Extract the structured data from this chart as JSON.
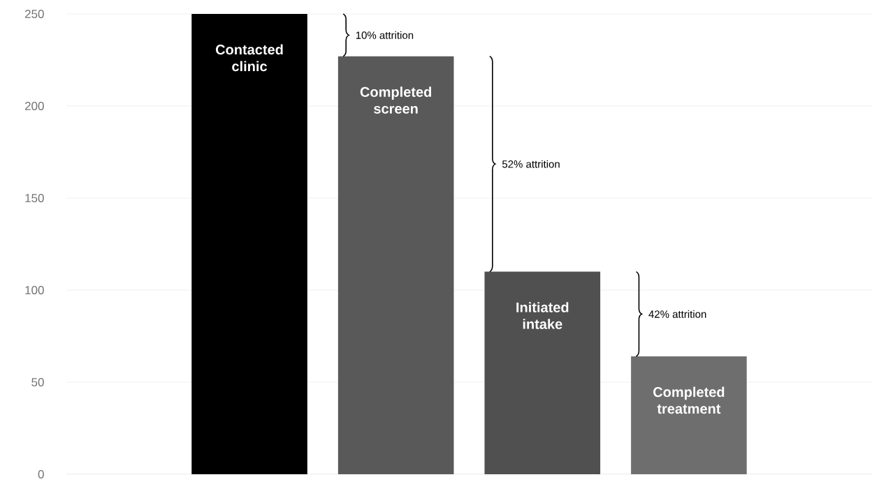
{
  "chart_data": {
    "type": "bar",
    "categories": [
      "Contacted clinic",
      "Completed screen",
      "Initiated intake",
      "Completed treatment"
    ],
    "values": [
      250,
      227,
      110,
      64
    ],
    "colors": [
      "#000000",
      "#595959",
      "#505050",
      "#6e6e6e"
    ],
    "ylim": [
      0,
      250
    ],
    "yticks": [
      0,
      50,
      100,
      150,
      200,
      250
    ],
    "grid": "y",
    "annotations": [
      "10% attrition",
      "52% attrition",
      "42% attrition"
    ]
  }
}
